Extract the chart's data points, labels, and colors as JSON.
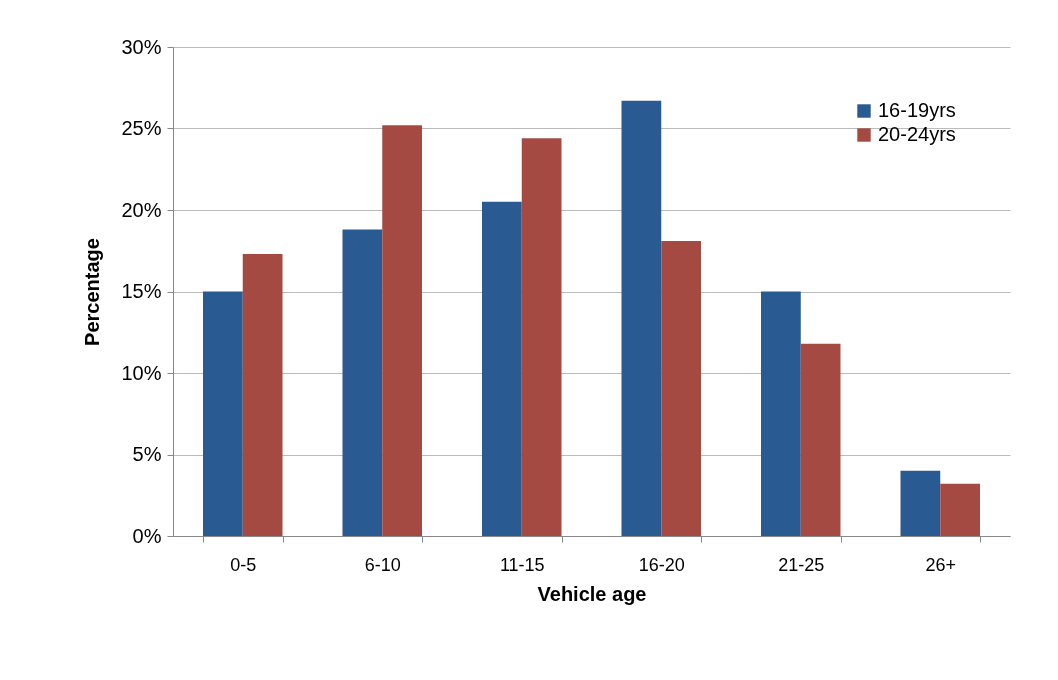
{
  "chart_data": {
    "type": "bar",
    "xlabel": "Vehicle age",
    "ylabel": "Percentage",
    "categories": [
      "0-5",
      "6-10",
      "11-15",
      "16-20",
      "21-25",
      "26+"
    ],
    "series": [
      {
        "name": "16-19yrs",
        "color": "#2a5a92",
        "values": [
          15.0,
          18.8,
          20.5,
          26.7,
          15.0,
          4.0
        ]
      },
      {
        "name": "20-24yrs",
        "color": "#a54a42",
        "values": [
          17.3,
          25.2,
          24.4,
          18.1,
          11.8,
          3.2
        ]
      }
    ],
    "ylim": [
      0,
      30
    ],
    "yticks": [
      {
        "value": 0,
        "label": "0%"
      },
      {
        "value": 5,
        "label": "5%"
      },
      {
        "value": 10,
        "label": "10%"
      },
      {
        "value": 15,
        "label": "15%"
      },
      {
        "value": 20,
        "label": "20%"
      },
      {
        "value": 25,
        "label": "25%"
      },
      {
        "value": 30,
        "label": "30%"
      }
    ],
    "grid": "y",
    "legend": "top right"
  }
}
